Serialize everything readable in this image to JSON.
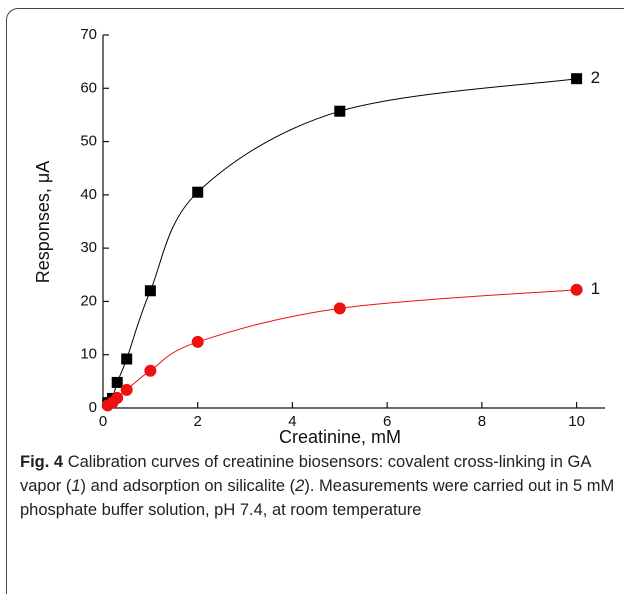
{
  "chart_data": {
    "type": "scatter",
    "xlabel": "Creatinine, mM",
    "ylabel": "Responses, μA",
    "xlim": [
      0,
      10.6
    ],
    "ylim": [
      0,
      70
    ],
    "xticks": [
      0,
      2,
      4,
      6,
      8,
      10
    ],
    "yticks": [
      0,
      10,
      20,
      30,
      40,
      50,
      60,
      70
    ],
    "series": [
      {
        "name": "2",
        "color": "#000000",
        "marker": "square",
        "x": [
          0.1,
          0.2,
          0.3,
          0.5,
          1,
          2,
          5,
          10
        ],
        "values": [
          1,
          1.8,
          4.8,
          9.2,
          22,
          40.5,
          55.7,
          61.8
        ]
      },
      {
        "name": "1",
        "color": "#ee1111",
        "marker": "circle",
        "x": [
          0.1,
          0.2,
          0.3,
          0.5,
          1,
          2,
          5,
          10
        ],
        "values": [
          0.5,
          1,
          1.9,
          3.4,
          7,
          12.4,
          18.7,
          22.2
        ]
      }
    ]
  },
  "caption": {
    "label": "Fig. 4",
    "parts": [
      "Calibration curves of creatinine biosensors: covalent cross-linking in GA vapor (",
      "1",
      ") and adsorption on silicalite (",
      "2",
      "). Measurements were carried out in 5 mM phosphate buffer solution, pH 7.4, at room temperature"
    ]
  }
}
